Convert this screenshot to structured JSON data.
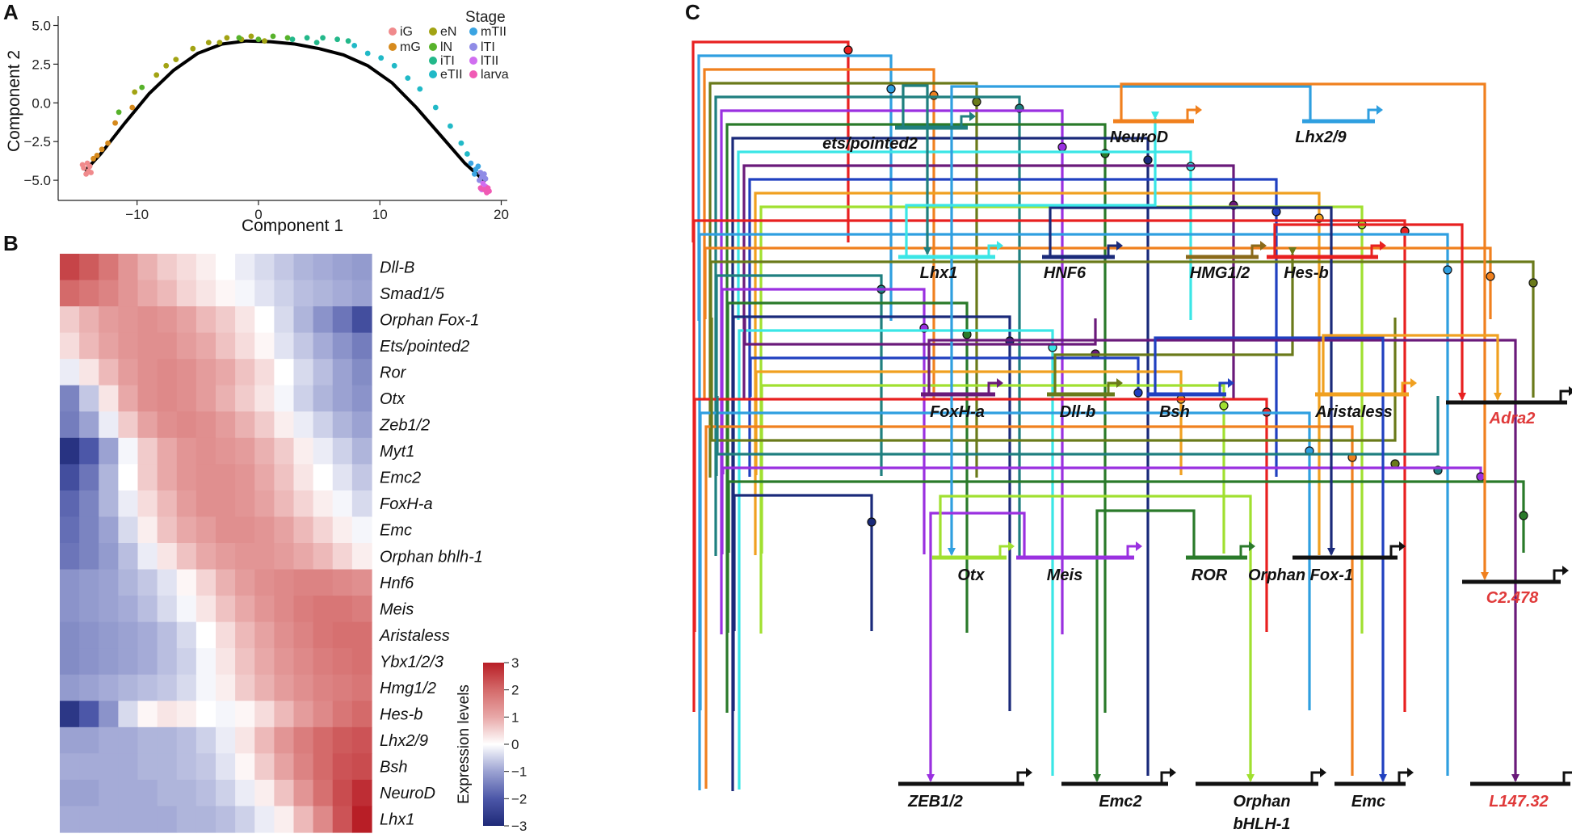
{
  "panels": {
    "a": "A",
    "b": "B",
    "c": "C"
  },
  "chart_data": [
    {
      "type": "scatter",
      "panel": "A",
      "xlabel": "Component 1",
      "ylabel": "Component 2",
      "xlim": [
        -16.5,
        20.5
      ],
      "ylim": [
        -6.3,
        5.6
      ],
      "xticks": [
        -10,
        0,
        10,
        20
      ],
      "yticks": [
        -5.0,
        -2.5,
        0.0,
        2.5,
        5.0
      ],
      "xtick_labels": [
        "−10",
        "0",
        "10",
        "20"
      ],
      "ytick_labels": [
        "−5.0",
        "−2.5",
        "0.0",
        "2.5",
        "5.0"
      ],
      "legend_title": "Stage",
      "legend_position": "top-right",
      "trajectory": {
        "x": [
          -14.3,
          -13,
          -11,
          -9,
          -7,
          -5,
          -3,
          -1,
          1,
          3,
          5,
          7,
          9,
          11,
          13,
          15,
          17,
          18.7
        ],
        "y": [
          -4.4,
          -3.3,
          -1.3,
          0.6,
          2.1,
          3.2,
          3.8,
          4.0,
          3.95,
          3.8,
          3.5,
          3.1,
          2.4,
          1.3,
          -0.3,
          -2.1,
          -3.9,
          -5.1
        ]
      },
      "series": [
        {
          "name": "iG",
          "color": "#f08a8c",
          "points": [
            [
              -14.4,
              -4.2
            ],
            [
              -14.2,
              -4.6
            ],
            [
              -14.0,
              -4.4
            ],
            [
              -13.9,
              -4.1
            ],
            [
              -14.5,
              -4.0
            ],
            [
              -13.8,
              -4.5
            ],
            [
              -14.1,
              -3.9
            ]
          ]
        },
        {
          "name": "mG",
          "color": "#d68a1d",
          "points": [
            [
              -13.3,
              -3.4
            ],
            [
              -12.4,
              -2.6
            ],
            [
              -11.8,
              -1.3
            ],
            [
              -12.9,
              -3.0
            ],
            [
              -10.4,
              -0.3
            ],
            [
              -13.6,
              -3.6
            ]
          ]
        },
        {
          "name": "eN",
          "color": "#a2a313",
          "points": [
            [
              -10.2,
              0.7
            ],
            [
              -8.4,
              1.8
            ],
            [
              -6.8,
              2.8
            ],
            [
              -5.4,
              3.5
            ],
            [
              -4.1,
              3.9
            ],
            [
              -2.6,
              4.2
            ],
            [
              -1.4,
              4.1
            ],
            [
              -0.6,
              4.3
            ],
            [
              0.5,
              4.0
            ],
            [
              -3.2,
              3.9
            ],
            [
              -7.6,
              2.4
            ]
          ]
        },
        {
          "name": "lN",
          "color": "#57b22b",
          "points": [
            [
              -11.5,
              -0.6
            ],
            [
              -9.6,
              1.0
            ],
            [
              -1.6,
              4.2
            ],
            [
              0.0,
              4.1
            ],
            [
              1.2,
              4.3
            ],
            [
              2.4,
              4.2
            ]
          ]
        },
        {
          "name": "iTI",
          "color": "#23b88a",
          "points": [
            [
              2.8,
              4.1
            ],
            [
              4.0,
              4.2
            ],
            [
              5.3,
              4.2
            ],
            [
              6.5,
              4.1
            ],
            [
              7.4,
              4.0
            ],
            [
              4.8,
              3.9
            ]
          ]
        },
        {
          "name": "eTII",
          "color": "#21b9c7",
          "points": [
            [
              7.9,
              3.7
            ],
            [
              9.0,
              3.2
            ],
            [
              10.1,
              2.9
            ],
            [
              11.2,
              2.4
            ],
            [
              12.3,
              1.6
            ],
            [
              13.3,
              0.9
            ],
            [
              14.6,
              -0.3
            ],
            [
              15.8,
              -1.5
            ],
            [
              16.7,
              -2.6
            ],
            [
              17.2,
              -3.3
            ]
          ]
        },
        {
          "name": "mTII",
          "color": "#3aa4e2",
          "points": [
            [
              17.5,
              -3.9
            ],
            [
              17.9,
              -4.3
            ],
            [
              18.1,
              -4.1
            ],
            [
              17.8,
              -4.6
            ]
          ]
        },
        {
          "name": "lTI",
          "color": "#8f8be6",
          "points": [
            [
              18.3,
              -4.5
            ],
            [
              18.4,
              -4.8
            ],
            [
              18.6,
              -4.6
            ],
            [
              18.2,
              -5.0
            ],
            [
              18.7,
              -4.9
            ]
          ]
        },
        {
          "name": "lTII",
          "color": "#d06ef0",
          "points": [
            [
              18.5,
              -5.2
            ],
            [
              18.7,
              -5.4
            ],
            [
              18.4,
              -5.6
            ]
          ]
        },
        {
          "name": "larva",
          "color": "#f05ab4",
          "points": [
            [
              18.6,
              -5.6
            ],
            [
              18.9,
              -5.5
            ],
            [
              18.8,
              -5.8
            ],
            [
              18.3,
              -5.5
            ],
            [
              19.0,
              -5.7
            ]
          ]
        }
      ]
    },
    {
      "type": "heatmap",
      "panel": "B",
      "colorbar_title": "Expression levels",
      "colorbar_ticks": [
        3,
        2,
        1,
        0,
        -1,
        -2,
        -3
      ],
      "colorbar_tick_labels": [
        "3",
        "2",
        "1",
        "0",
        "−1",
        "−2",
        "−3"
      ],
      "colorscale": [
        "#1f2a78",
        "#4c57a8",
        "#9ba2d2",
        "#ffffff",
        "#e8a8a8",
        "#d46a6a",
        "#b81e26"
      ],
      "rows": [
        "Dll-B",
        "Smad1/5",
        "Orphan Fox-1",
        "Ets/pointed2",
        "Ror",
        "Otx",
        "Zeb1/2",
        "Myt1",
        "Emc2",
        "FoxH-a",
        "Emc",
        "Orphan bhlh-1",
        "Hnf6",
        "Meis",
        "Aristaless",
        "Ybx1/2/3",
        "Hmg1/2",
        "Hes-b",
        "Lhx2/9",
        "Bsh",
        "NeuroD",
        "Lhx1"
      ],
      "values": [
        [
          2.5,
          2.2,
          1.8,
          1.3,
          0.9,
          0.6,
          0.4,
          0.2,
          0.0,
          -0.2,
          -0.4,
          -0.6,
          -0.8,
          -0.9,
          -1.0,
          -1.1
        ],
        [
          2.0,
          1.8,
          1.6,
          1.3,
          1.0,
          0.8,
          0.5,
          0.3,
          0.1,
          -0.1,
          -0.3,
          -0.5,
          -0.7,
          -0.8,
          -0.9,
          -1.0
        ],
        [
          0.6,
          0.9,
          1.2,
          1.3,
          1.4,
          1.3,
          1.1,
          0.8,
          0.6,
          0.3,
          0.0,
          -0.4,
          -0.8,
          -1.2,
          -1.6,
          -2.2
        ],
        [
          0.4,
          0.8,
          1.1,
          1.3,
          1.4,
          1.4,
          1.2,
          1.0,
          0.7,
          0.4,
          0.1,
          -0.3,
          -0.6,
          -0.9,
          -1.2,
          -1.5
        ],
        [
          -0.2,
          0.3,
          0.8,
          1.2,
          1.4,
          1.5,
          1.4,
          1.2,
          1.0,
          0.7,
          0.4,
          0.0,
          -0.4,
          -0.7,
          -1.0,
          -1.3
        ],
        [
          -1.4,
          -0.6,
          0.3,
          1.0,
          1.4,
          1.5,
          1.4,
          1.2,
          0.9,
          0.6,
          0.3,
          -0.1,
          -0.5,
          -0.8,
          -1.0,
          -1.2
        ],
        [
          -1.5,
          -1.0,
          -0.2,
          0.6,
          1.1,
          1.4,
          1.5,
          1.4,
          1.2,
          0.9,
          0.6,
          0.2,
          -0.2,
          -0.5,
          -0.8,
          -1.0
        ],
        [
          -2.8,
          -2.0,
          -1.0,
          -0.1,
          0.6,
          1.0,
          1.3,
          1.4,
          1.3,
          1.2,
          0.9,
          0.6,
          0.2,
          -0.2,
          -0.5,
          -0.8
        ],
        [
          -2.2,
          -1.6,
          -0.8,
          0.0,
          0.6,
          1.0,
          1.3,
          1.4,
          1.4,
          1.3,
          1.0,
          0.7,
          0.3,
          0.0,
          -0.3,
          -0.6
        ],
        [
          -1.8,
          -1.4,
          -0.8,
          -0.2,
          0.4,
          0.8,
          1.2,
          1.4,
          1.4,
          1.3,
          1.1,
          0.8,
          0.5,
          0.2,
          -0.1,
          -0.4
        ],
        [
          -1.7,
          -1.4,
          -1.0,
          -0.4,
          0.2,
          0.7,
          1.0,
          1.2,
          1.4,
          1.4,
          1.3,
          1.1,
          0.8,
          0.5,
          0.2,
          -0.1
        ],
        [
          -1.6,
          -1.4,
          -1.1,
          -0.7,
          -0.2,
          0.3,
          0.7,
          1.0,
          1.2,
          1.3,
          1.3,
          1.2,
          1.0,
          0.8,
          0.5,
          0.2
        ],
        [
          -1.2,
          -1.1,
          -1.0,
          -0.8,
          -0.6,
          -0.3,
          0.1,
          0.5,
          0.9,
          1.2,
          1.4,
          1.5,
          1.6,
          1.6,
          1.5,
          1.4
        ],
        [
          -1.2,
          -1.1,
          -1.0,
          -0.9,
          -0.7,
          -0.4,
          -0.1,
          0.3,
          0.7,
          1.0,
          1.3,
          1.5,
          1.7,
          1.8,
          1.8,
          1.7
        ],
        [
          -1.3,
          -1.2,
          -1.1,
          -1.0,
          -0.9,
          -0.7,
          -0.4,
          0.0,
          0.4,
          0.8,
          1.1,
          1.4,
          1.6,
          1.8,
          1.9,
          1.9
        ],
        [
          -1.3,
          -1.2,
          -1.1,
          -1.0,
          -0.9,
          -0.7,
          -0.5,
          -0.1,
          0.3,
          0.7,
          1.0,
          1.3,
          1.5,
          1.7,
          1.8,
          1.9
        ],
        [
          -1.1,
          -1.0,
          -0.9,
          -0.8,
          -0.7,
          -0.6,
          -0.4,
          -0.1,
          0.2,
          0.6,
          0.9,
          1.2,
          1.4,
          1.6,
          1.7,
          1.8
        ],
        [
          -2.7,
          -2.0,
          -1.2,
          -0.4,
          0.1,
          0.3,
          0.2,
          0.0,
          -0.1,
          0.1,
          0.4,
          0.8,
          1.2,
          1.5,
          1.8,
          2.0
        ],
        [
          -1.0,
          -1.0,
          -0.9,
          -0.9,
          -0.8,
          -0.8,
          -0.7,
          -0.5,
          -0.2,
          0.3,
          0.8,
          1.3,
          1.7,
          2.0,
          2.2,
          2.3
        ],
        [
          -0.9,
          -0.9,
          -0.9,
          -0.9,
          -0.8,
          -0.8,
          -0.7,
          -0.6,
          -0.3,
          0.1,
          0.6,
          1.1,
          1.6,
          2.0,
          2.3,
          2.4
        ],
        [
          -1.0,
          -1.0,
          -0.9,
          -0.9,
          -0.9,
          -0.8,
          -0.8,
          -0.7,
          -0.5,
          -0.2,
          0.2,
          0.7,
          1.3,
          1.9,
          2.4,
          2.8
        ],
        [
          -0.9,
          -0.9,
          -0.9,
          -0.9,
          -0.9,
          -0.9,
          -0.8,
          -0.8,
          -0.7,
          -0.5,
          -0.2,
          0.2,
          0.8,
          1.5,
          2.3,
          3.0
        ]
      ]
    },
    {
      "type": "diagram",
      "panel": "C",
      "nodes": [
        {
          "id": "ets_pointed2",
          "label": "ets/pointed2",
          "color": "#1f7f7f"
        },
        {
          "id": "neurod",
          "label": "NeuroD",
          "color": "#f0801e"
        },
        {
          "id": "lhx2_9",
          "label": "Lhx2/9",
          "color": "#2f9fe0"
        },
        {
          "id": "lhx1",
          "label": "Lhx1",
          "color": "#3ae6e6"
        },
        {
          "id": "hnf6",
          "label": "HNF6",
          "color": "#1a2a7a"
        },
        {
          "id": "hmg1_2",
          "label": "HMG1/2",
          "color": "#8a6a1a"
        },
        {
          "id": "hes_b",
          "label": "Hes-b",
          "color": "#e82020"
        },
        {
          "id": "foxh_a",
          "label": "FoxH-a",
          "color": "#6a1a7a"
        },
        {
          "id": "dll_b",
          "label": "Dll-b",
          "color": "#6a7a1a"
        },
        {
          "id": "bsh",
          "label": "Bsh",
          "color": "#2040c0"
        },
        {
          "id": "aristaless",
          "label": "Aristaless",
          "color": "#f0a020"
        },
        {
          "id": "adra2",
          "label": "Adra2",
          "color": "#111111"
        },
        {
          "id": "otx",
          "label": "Otx",
          "color": "#a0e030"
        },
        {
          "id": "meis",
          "label": "Meis",
          "color": "#9a30e0"
        },
        {
          "id": "ror",
          "label": "ROR",
          "color": "#2a7a2a"
        },
        {
          "id": "orphan_fox1",
          "label": "Orphan Fox-1",
          "color": "#111111"
        },
        {
          "id": "c2_478",
          "label": "C2.478",
          "color": "#111111"
        },
        {
          "id": "zeb1_2",
          "label": "ZEB1/2",
          "color": "#111111"
        },
        {
          "id": "emc2",
          "label": "Emc2",
          "color": "#111111"
        },
        {
          "id": "orphan_bhlh1",
          "label": "Orphan bHLH-1",
          "color": "#111111"
        },
        {
          "id": "emc",
          "label": "Emc",
          "color": "#111111"
        },
        {
          "id": "l147_32",
          "label": "L147.32",
          "color": "#111111"
        }
      ],
      "edges": [
        {
          "from": "hes_b",
          "to": "adra2",
          "color": "#e82020"
        },
        {
          "from": "lhx2_9",
          "to": "otx",
          "color": "#2f9fe0"
        },
        {
          "from": "neurod",
          "to": "c2_478",
          "color": "#f0801e"
        },
        {
          "from": "dll_b",
          "to": "hes_b",
          "color": "#6a7a1a"
        },
        {
          "from": "ets_pointed2",
          "to": "lhx1",
          "color": "#1f7f7f"
        },
        {
          "from": "meis",
          "to": "zeb1_2",
          "color": "#9a30e0"
        },
        {
          "from": "ror",
          "to": "emc2",
          "color": "#2a7a2a"
        },
        {
          "from": "hnf6",
          "to": "orphan_fox1",
          "color": "#1a2a7a"
        },
        {
          "from": "lhx1",
          "to": "neurod",
          "color": "#3ae6e6"
        },
        {
          "from": "foxh_a",
          "to": "l147_32",
          "color": "#6a1a7a"
        },
        {
          "from": "bsh",
          "to": "emc",
          "color": "#2040c0"
        },
        {
          "from": "aristaless",
          "to": "adra2",
          "color": "#f0a020"
        },
        {
          "from": "otx",
          "to": "orphan_bhlh1",
          "color": "#a0e030"
        }
      ]
    }
  ]
}
